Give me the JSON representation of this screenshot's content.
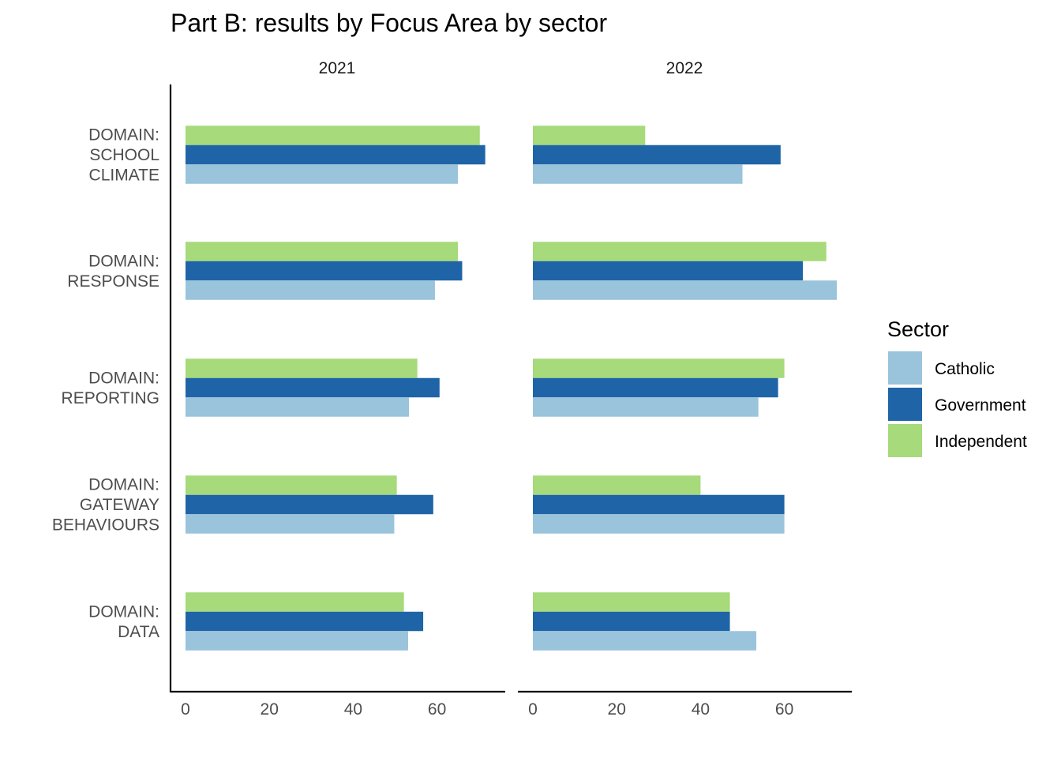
{
  "chart_data": {
    "type": "bar",
    "orientation": "horizontal",
    "title": "Part B: results by Focus Area by sector",
    "xlabel": "",
    "ylabel": "",
    "xlim": [
      0,
      76
    ],
    "x_ticks": [
      "0",
      "20",
      "40",
      "60"
    ],
    "grid": false,
    "legend": {
      "title": "Sector",
      "position": "right"
    },
    "categories": [
      [
        "DOMAIN:",
        "SCHOOL",
        "CLIMATE"
      ],
      [
        "DOMAIN:",
        "RESPONSE"
      ],
      [
        "DOMAIN:",
        "REPORTING"
      ],
      [
        "DOMAIN:",
        "GATEWAY",
        "BEHAVIOURS"
      ],
      [
        "DOMAIN:",
        "DATA"
      ]
    ],
    "series": [
      {
        "name": "Catholic",
        "color": "#9AC3DC"
      },
      {
        "name": "Government",
        "color": "#1F64A7"
      },
      {
        "name": "Independent",
        "color": "#A6DA7A"
      }
    ],
    "facets": [
      {
        "title": "2021",
        "values": {
          "Catholic": [
            65,
            59.5,
            53.3,
            49.8,
            53.1
          ],
          "Government": [
            71.5,
            66,
            60.6,
            59.1,
            56.7
          ],
          "Independent": [
            70.2,
            65,
            55.3,
            50.4,
            52.1
          ]
        }
      },
      {
        "title": "2022",
        "values": {
          "Catholic": [
            50,
            72.5,
            53.8,
            60,
            53.3
          ],
          "Government": [
            59.1,
            64.4,
            58.5,
            60,
            47
          ],
          "Independent": [
            26.8,
            70,
            60,
            40,
            47
          ]
        }
      }
    ]
  }
}
